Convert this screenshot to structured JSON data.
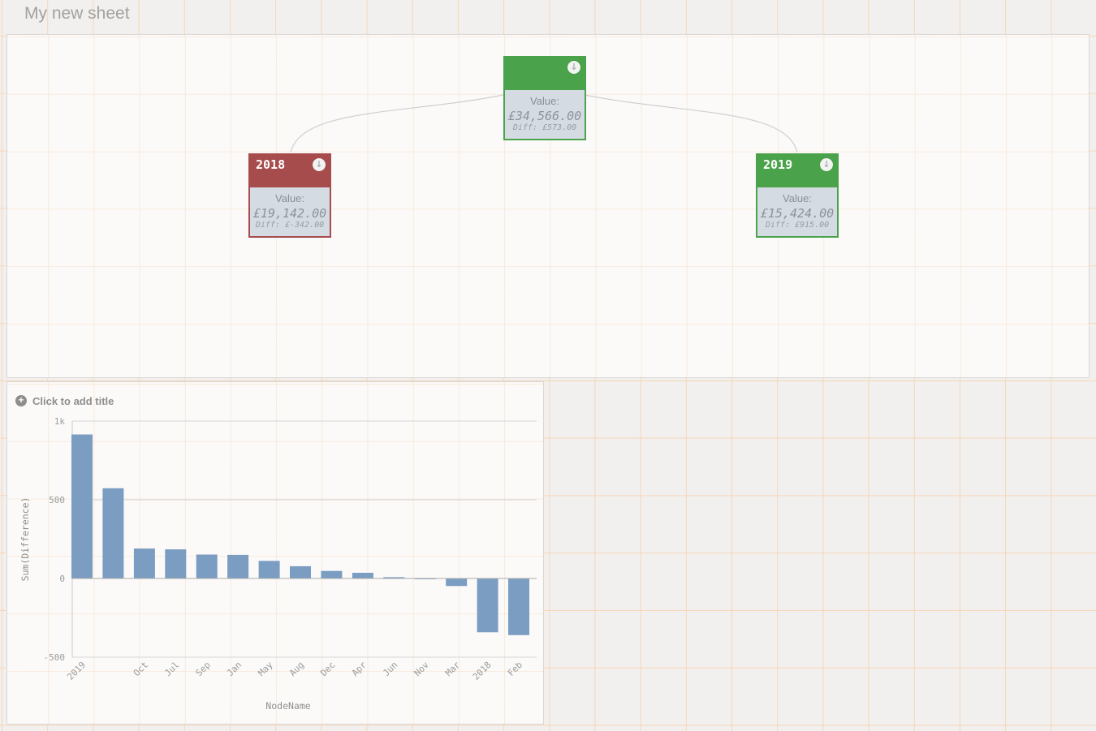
{
  "page": {
    "title": "My new sheet"
  },
  "tree_chart": {
    "nodes": {
      "root": {
        "title": "",
        "value_label": "Value:",
        "value": "£34,566.00",
        "diff": "Diff: £573.00",
        "color": "#4aa34a"
      },
      "y2018": {
        "title": "2018",
        "value_label": "Value:",
        "value": "£19,142.00",
        "diff": "Diff: £-342.00",
        "color": "#a64c4c"
      },
      "y2019": {
        "title": "2019",
        "value_label": "Value:",
        "value": "£15,424.00",
        "diff": "Diff: £915.00",
        "color": "#4aa34a"
      }
    },
    "collapse_icon": "↓"
  },
  "bar_chart_panel": {
    "title_placeholder": "Click to add title",
    "plus_icon": "+"
  },
  "chart_data": {
    "type": "bar",
    "title": "",
    "xlabel": "NodeName",
    "ylabel": "Sum(Difference)",
    "categories": [
      "2019",
      "",
      "Oct",
      "Jul",
      "Sep",
      "Jan",
      "May",
      "Aug",
      "Dec",
      "Apr",
      "Jun",
      "Nov",
      "Mar",
      "2018",
      "Feb"
    ],
    "values": [
      915,
      573,
      190,
      185,
      152,
      150,
      112,
      78,
      48,
      36,
      8,
      -4,
      -48,
      -342,
      -360
    ],
    "ylim": [
      -500,
      1000
    ],
    "yticks": [
      1000,
      500,
      0,
      -500
    ],
    "ytick_labels": [
      "1k",
      "500",
      "0",
      "-500"
    ],
    "bar_color": "#7b9dc1",
    "grid": true,
    "legend": false
  },
  "colors": {
    "background": "#f1f0ee",
    "grid_line": "#f7d6b7",
    "panel_background": "#fbfaf9",
    "panel_border": "#d9d8d6",
    "node_green": "#4aa34a",
    "node_red": "#a64c4c",
    "node_body": "#d5dbe2",
    "bar": "#7b9dc1",
    "link": "#cfcfcf"
  }
}
